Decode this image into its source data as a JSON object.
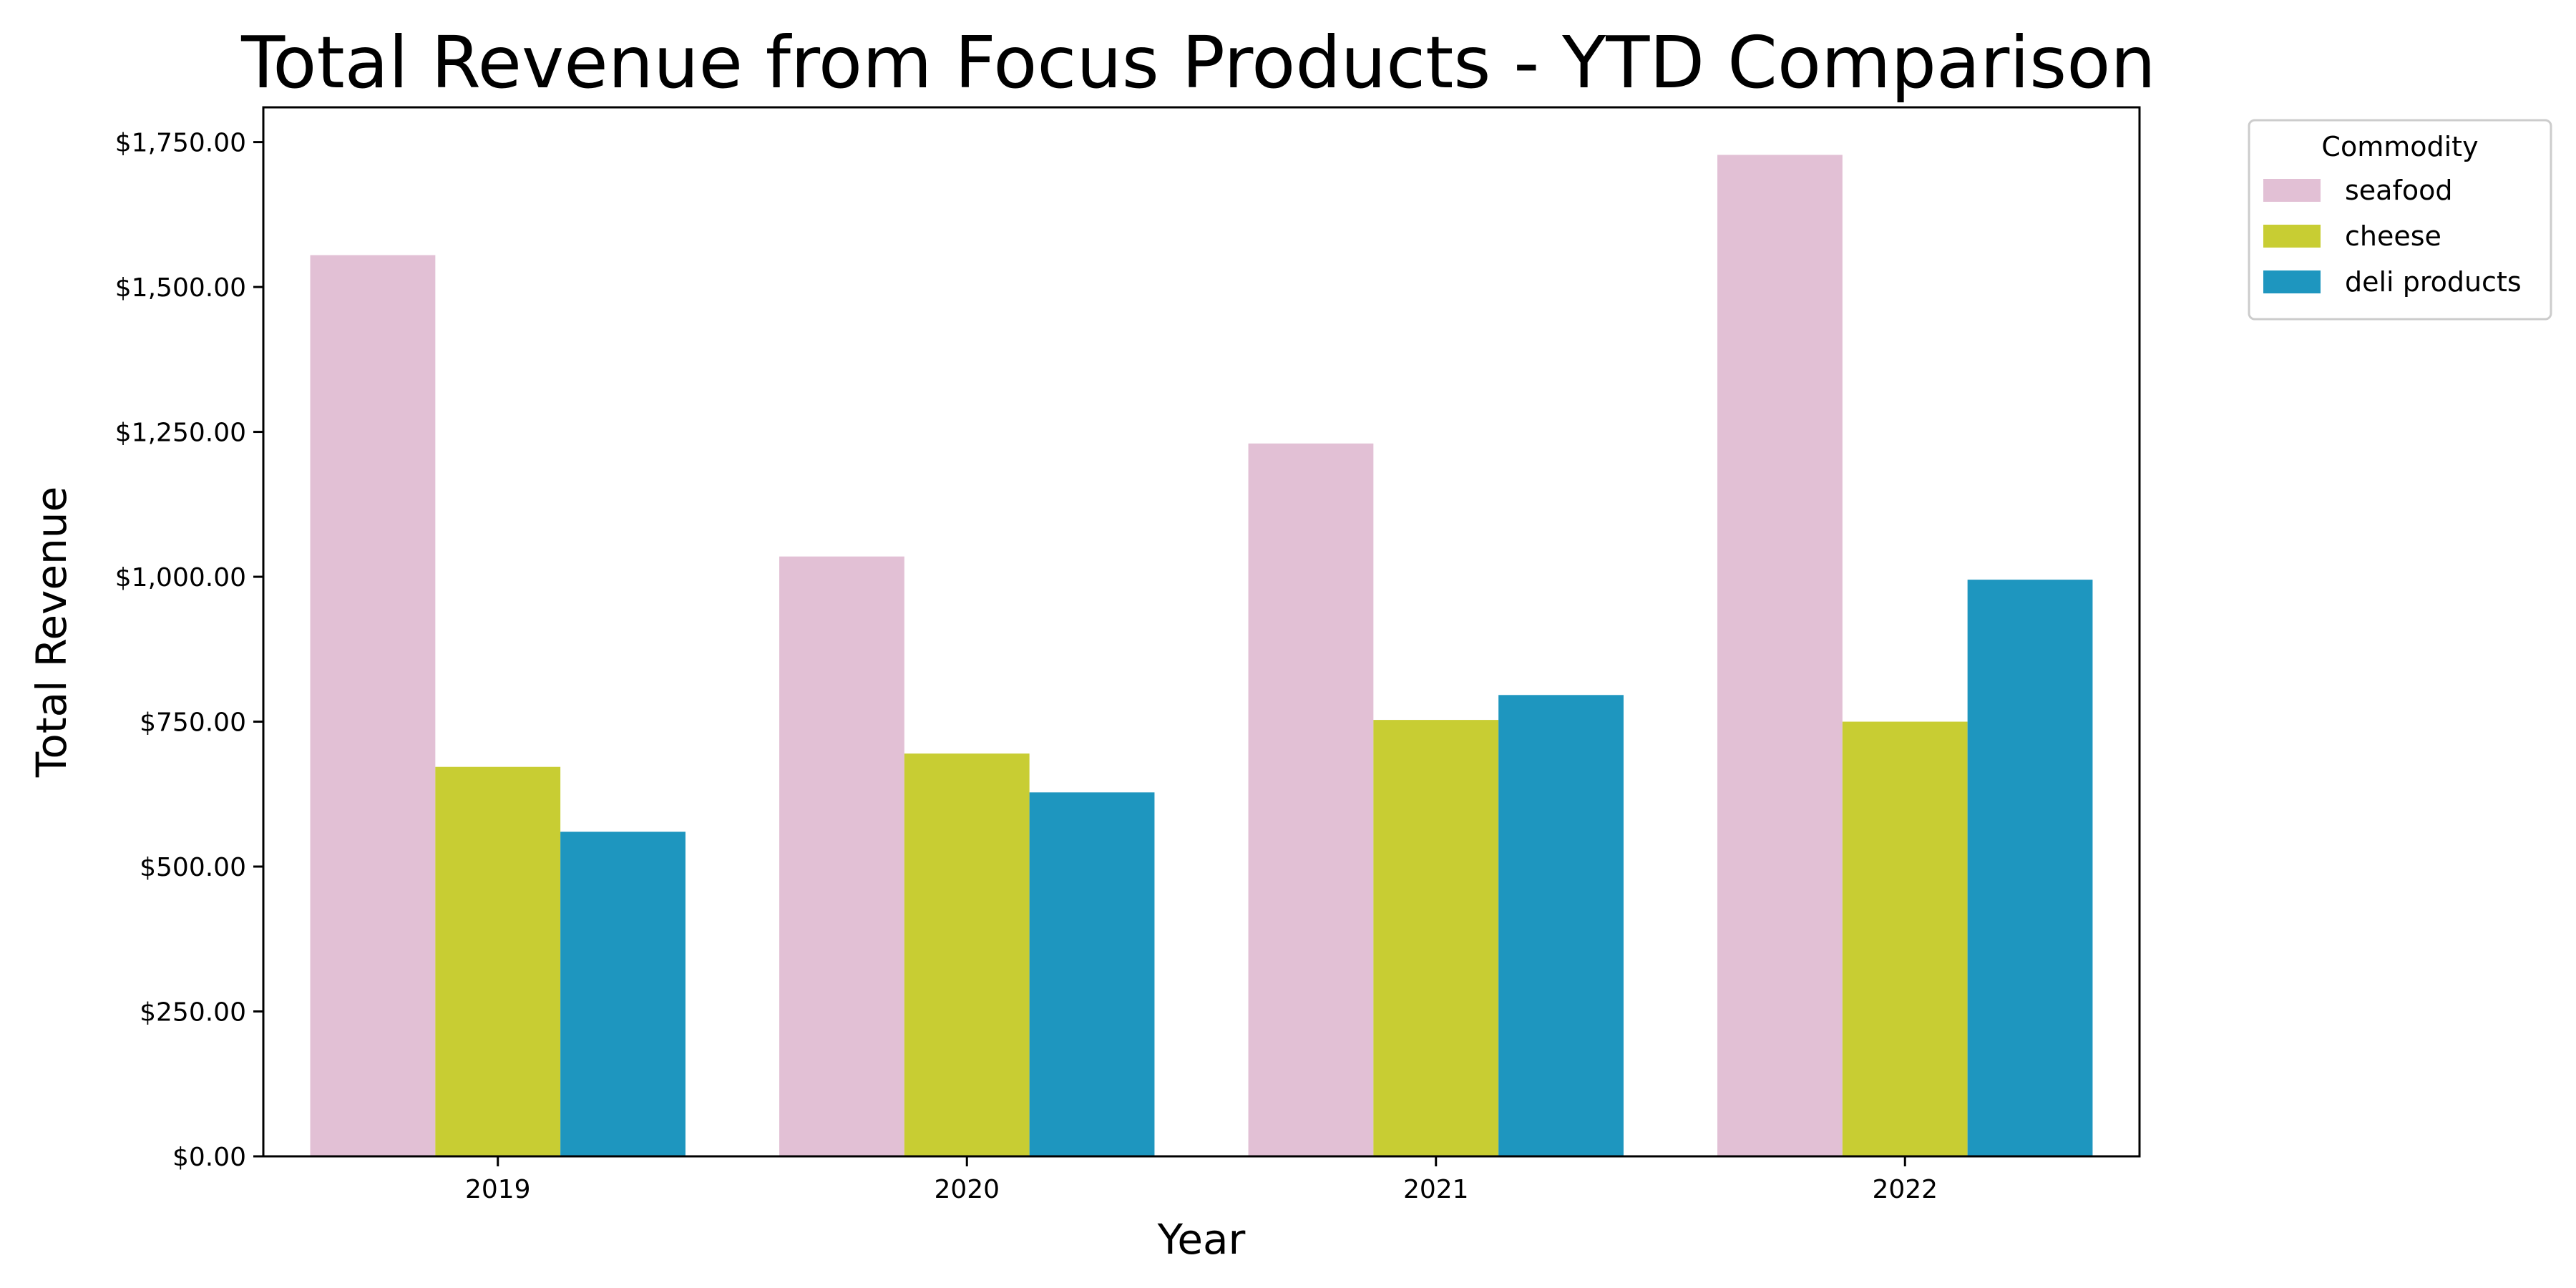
{
  "chart_data": {
    "type": "bar",
    "title": "Total Revenue from Focus Products - YTD Comparison",
    "xlabel": "Year",
    "ylabel": "Total Revenue",
    "categories": [
      "2019",
      "2020",
      "2021",
      "2022"
    ],
    "series": [
      {
        "name": "seafood",
        "color": "#e2c0d5",
        "values": [
          1555,
          1035,
          1230,
          1728
        ]
      },
      {
        "name": "cheese",
        "color": "#c8cd33",
        "values": [
          672,
          695,
          753,
          750
        ]
      },
      {
        "name": "deli products",
        "color": "#1e96bf",
        "values": [
          560,
          628,
          796,
          995
        ]
      }
    ],
    "ylim": [
      0,
      1810
    ],
    "yticks": [
      0,
      250,
      500,
      750,
      1000,
      1250,
      1500,
      1750
    ],
    "ytick_labels": [
      "$0.00",
      "$250.00",
      "$500.00",
      "$750.00",
      "$1,000.00",
      "$1,250.00",
      "$1,500.00",
      "$1,750.00"
    ],
    "legend": {
      "title": "Commodity",
      "position": "outside-top-right"
    },
    "grid": false
  }
}
